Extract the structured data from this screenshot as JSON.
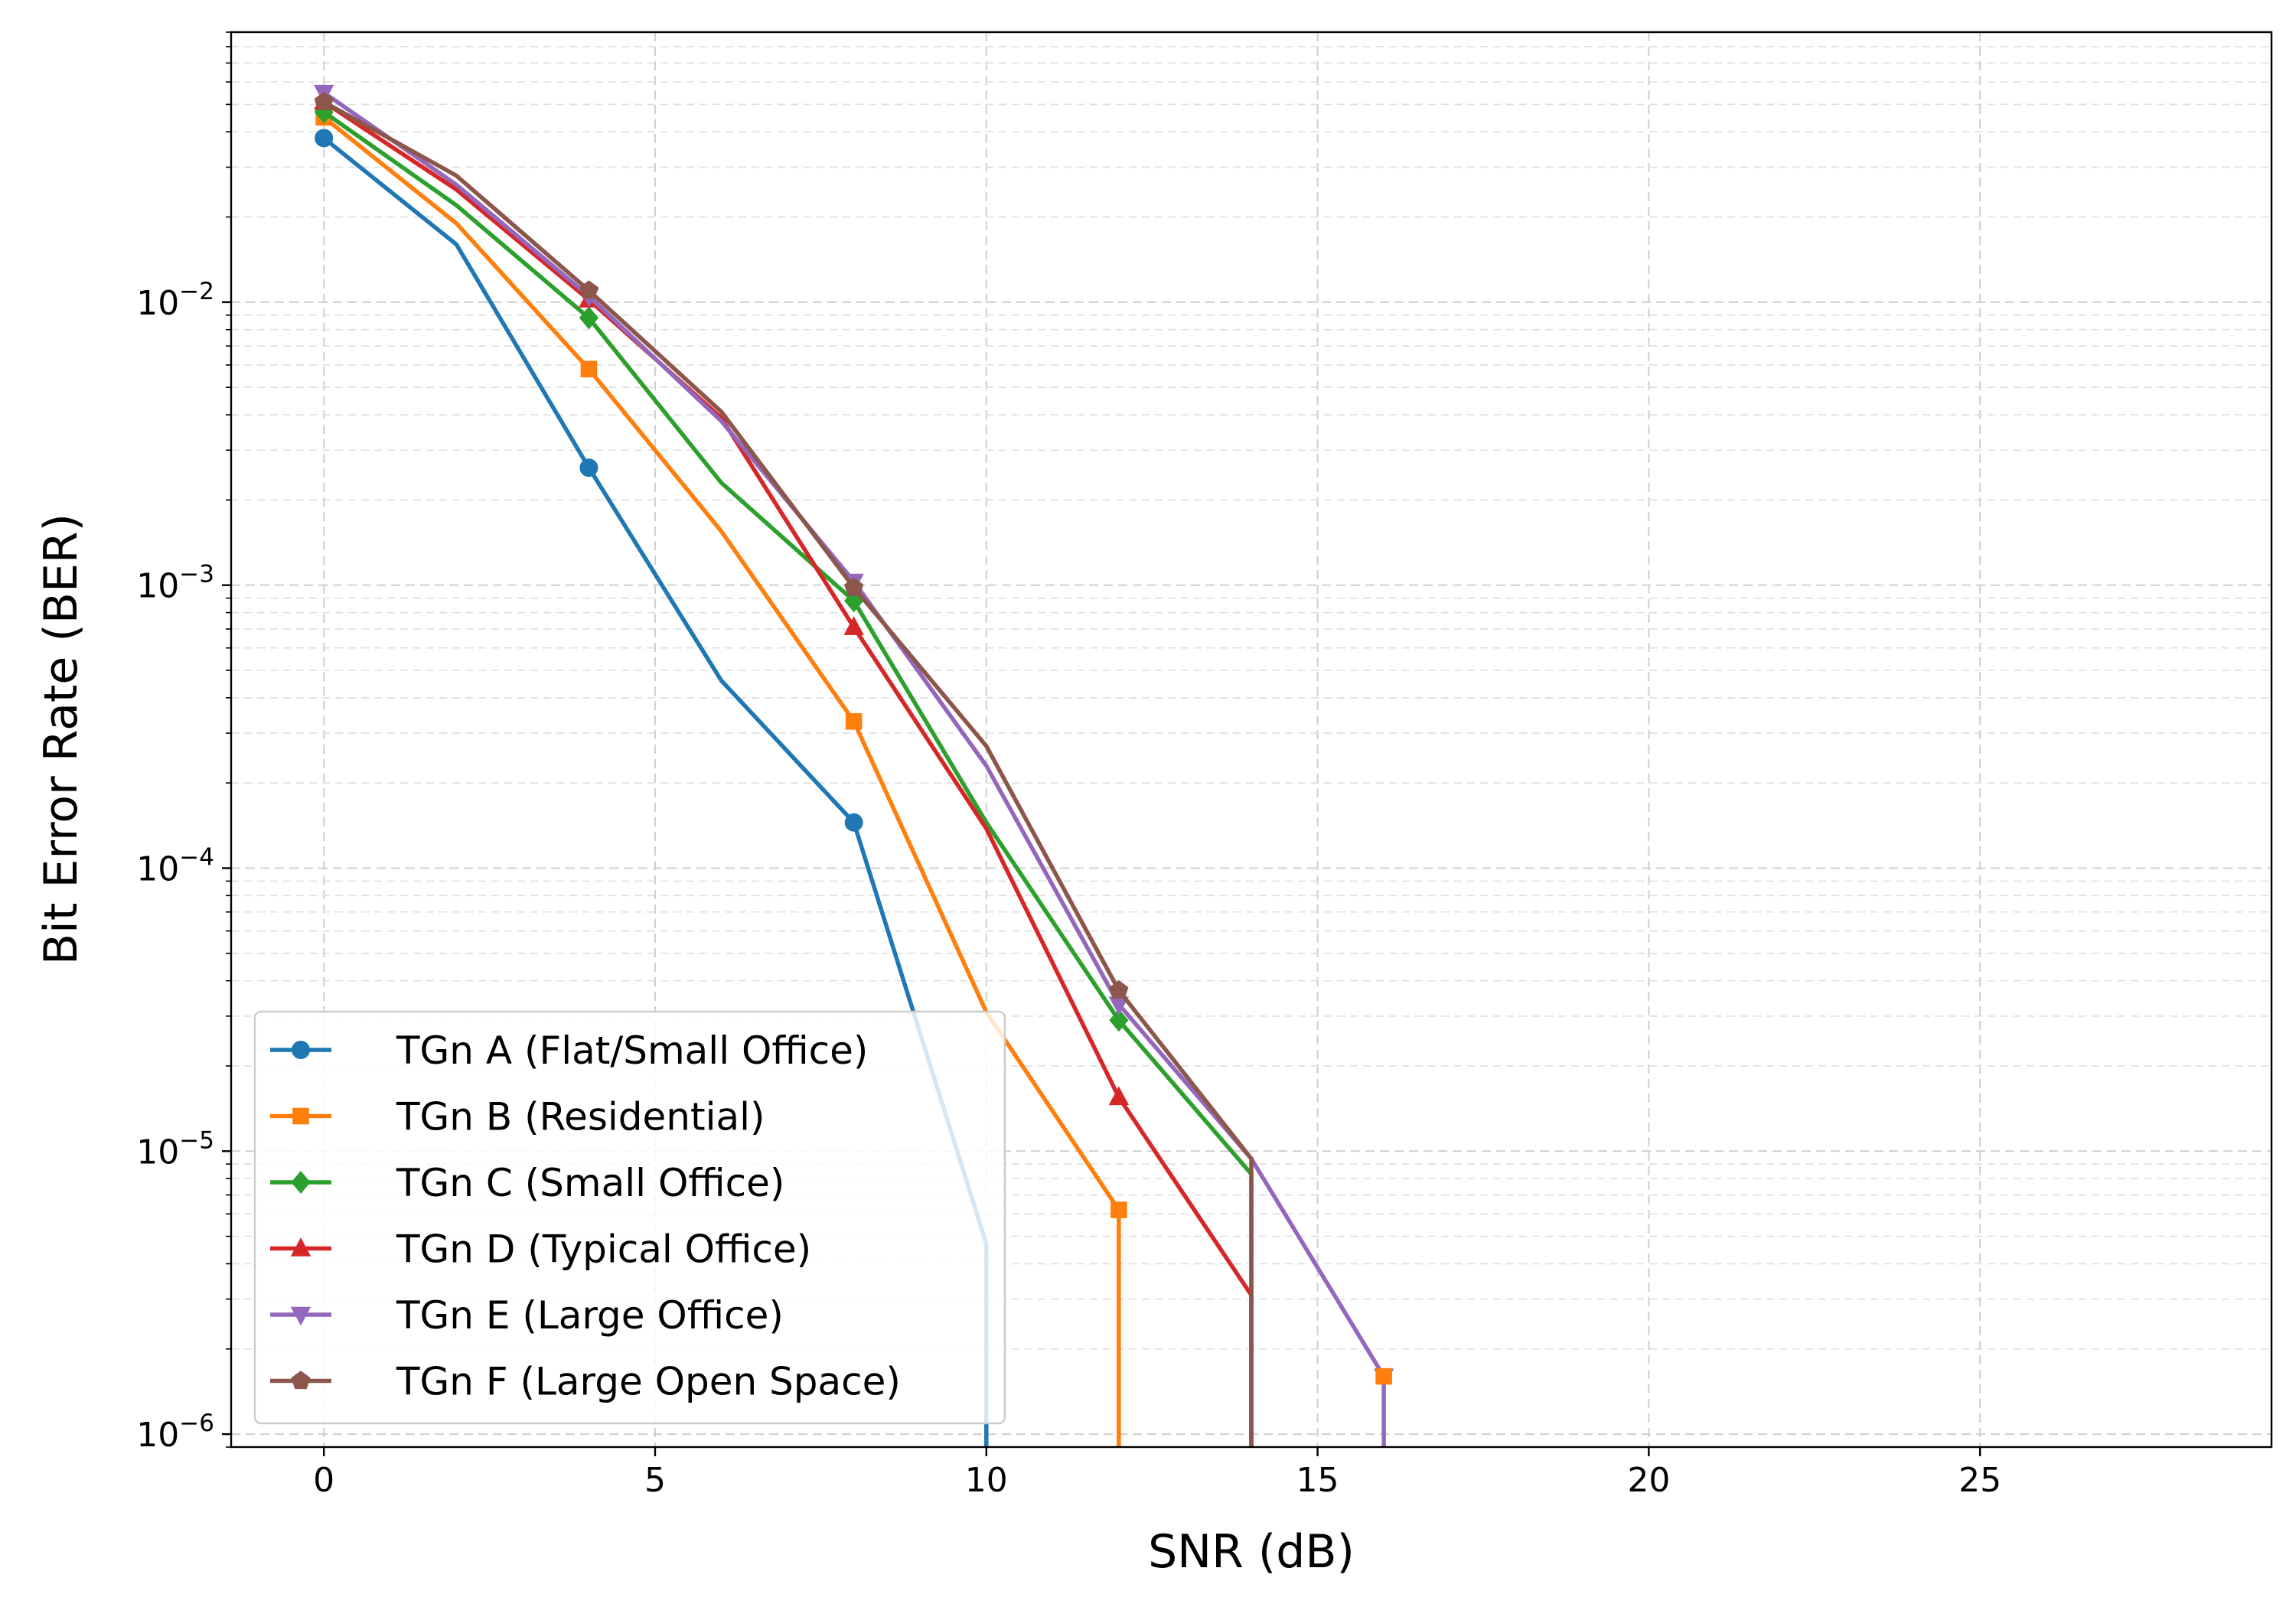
{
  "chart_data": {
    "type": "line",
    "title": "",
    "xlabel": "SNR (dB)",
    "ylabel": "Bit Error Rate (BER)",
    "yscale": "log",
    "xlim": [
      -1.4,
      29.4
    ],
    "ylim": [
      9e-07,
      0.09
    ],
    "grid": true,
    "legend_position": "lower-left",
    "x_ticks": [
      0,
      5,
      10,
      15,
      20,
      25
    ],
    "y_ticks": [
      1e-06,
      1e-05,
      0.0001,
      0.001,
      0.01
    ],
    "y_tick_labels": [
      {
        "base": "10",
        "exp": "−6"
      },
      {
        "base": "10",
        "exp": "−5"
      },
      {
        "base": "10",
        "exp": "−4"
      },
      {
        "base": "10",
        "exp": "−3"
      },
      {
        "base": "10",
        "exp": "−2"
      }
    ],
    "series": [
      {
        "name": "TGn A (Flat/Small Office)",
        "color": "#1f77b4",
        "marker": "circle",
        "x": [
          0,
          2,
          4,
          6,
          8,
          10,
          10
        ],
        "y": [
          0.038,
          0.016,
          0.0026,
          0.00046,
          0.000145,
          4.7e-06,
          9e-07
        ]
      },
      {
        "name": "TGn B (Residential)",
        "color": "#ff7f0e",
        "marker": "square",
        "x": [
          0,
          2,
          4,
          6,
          8,
          10,
          12,
          12
        ],
        "y": [
          0.045,
          0.019,
          0.0058,
          0.00155,
          0.00033,
          3.1e-05,
          6.2e-06,
          9e-07
        ]
      },
      {
        "name": "TGn C (Small Office)",
        "color": "#2ca02c",
        "marker": "diamond",
        "x": [
          0,
          2,
          4,
          6,
          8,
          10,
          12,
          14,
          14
        ],
        "y": [
          0.047,
          0.022,
          0.0088,
          0.0023,
          0.00088,
          0.000145,
          2.9e-05,
          8.3e-06,
          9e-07
        ]
      },
      {
        "name": "TGn D (Typical Office)",
        "color": "#d62728",
        "marker": "triangle-up",
        "x": [
          0,
          2,
          4,
          6,
          8,
          10,
          12,
          14,
          14
        ],
        "y": [
          0.051,
          0.025,
          0.0102,
          0.0039,
          0.00071,
          0.000138,
          1.55e-05,
          3.1e-06,
          9e-07
        ]
      },
      {
        "name": "TGn E (Large Office)",
        "color": "#9467bd",
        "marker": "triangle-down",
        "x": [
          0,
          2,
          4,
          6,
          8,
          10,
          12,
          14,
          16,
          16
        ],
        "y": [
          0.055,
          0.026,
          0.0105,
          0.0038,
          0.00103,
          0.00023,
          3.3e-05,
          9.4e-06,
          1.6e-06,
          9e-07
        ]
      },
      {
        "name": "TGn F (Large Open Space)",
        "color": "#8c564b",
        "marker": "pentagon",
        "x": [
          0,
          2,
          4,
          6,
          8,
          10,
          12,
          14,
          14
        ],
        "y": [
          0.051,
          0.028,
          0.011,
          0.0041,
          0.00098,
          0.00027,
          3.7e-05,
          9.4e-06,
          9e-07
        ]
      }
    ],
    "annotations": [
      {
        "text": "orange square marker at end of TGn E",
        "x": 16,
        "y": 1.6e-06,
        "color": "#ff7f0e",
        "marker": "square"
      }
    ]
  }
}
